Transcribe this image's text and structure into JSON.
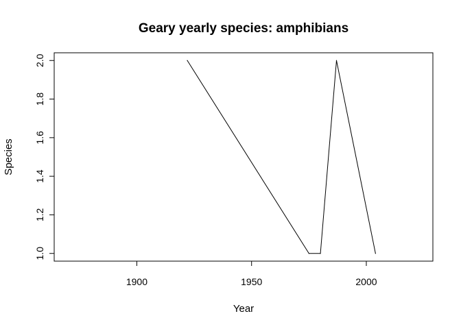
{
  "chart_data": {
    "type": "line",
    "title": "Geary yearly species: amphibians",
    "xlabel": "Year",
    "ylabel": "Species",
    "x": [
      1922,
      1975,
      1980,
      1987,
      2004
    ],
    "series": [
      {
        "values": [
          2,
          1,
          1,
          2,
          1
        ]
      }
    ],
    "xlim": [
      1864,
      2029
    ],
    "ylim": [
      0.96,
      2.04
    ],
    "x_ticks": [
      1900,
      1950,
      2000
    ],
    "x_tick_labels": [
      "1900",
      "1950",
      "2000"
    ],
    "y_ticks": [
      1.0,
      1.2,
      1.4,
      1.6,
      1.8,
      2.0
    ],
    "y_tick_labels": [
      "1.0",
      "1.2",
      "1.4",
      "1.6",
      "1.8",
      "2.0"
    ],
    "grid": false,
    "line_color": "#000000"
  }
}
